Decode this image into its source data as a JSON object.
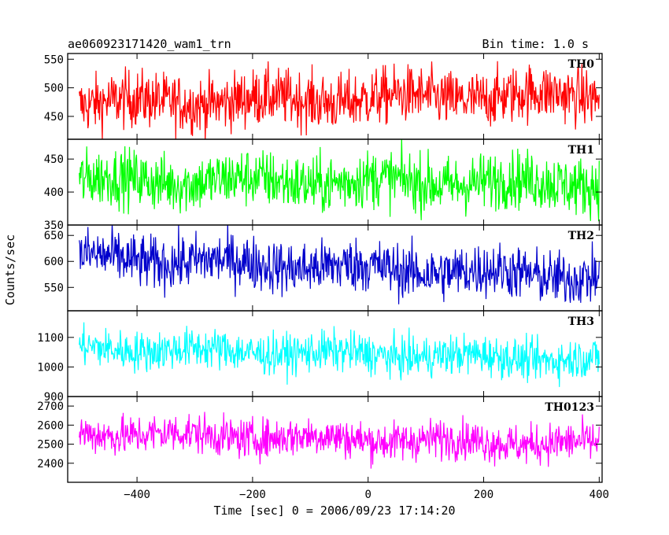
{
  "header": {
    "title": "ae060923171420_wam1_trn",
    "bin_time": "Bin time: 1.0 s"
  },
  "chart_data": {
    "type": "line",
    "xlabel": "Time [sec] 0 = 2006/09/23 17:14:20",
    "ylabel": "Counts/sec",
    "xlim": [
      -520,
      405
    ],
    "x_range": [
      -500,
      400
    ],
    "x_ticks": [
      -400,
      -200,
      0,
      200,
      400
    ],
    "x_tick_labels": [
      "−400",
      "−200",
      "0",
      "200",
      "400"
    ],
    "series": [
      {
        "name": "TH0",
        "color": "#ff0000",
        "ylim": [
          410,
          560
        ],
        "y_ticks": [
          450,
          500,
          550
        ],
        "y_tick_labels": [
          "450",
          "500",
          "550"
        ],
        "trend_start": 473,
        "trend_end": 488,
        "noise": 25
      },
      {
        "name": "TH1",
        "color": "#00ff00",
        "ylim": [
          350,
          480
        ],
        "y_ticks": [
          350,
          400,
          450
        ],
        "y_tick_labels": [
          "350",
          "400",
          "450"
        ],
        "trend_start": 418,
        "trend_end": 414,
        "noise": 22
      },
      {
        "name": "TH2",
        "color": "#0000cc",
        "ylim": [
          505,
          670
        ],
        "y_ticks": [
          550,
          600,
          650
        ],
        "y_tick_labels": [
          "550",
          "600",
          "650"
        ],
        "trend_start": 608,
        "trend_end": 570,
        "noise": 26
      },
      {
        "name": "TH3",
        "color": "#00ffff",
        "ylim": [
          900,
          1190
        ],
        "y_ticks": [
          900,
          1000,
          1100
        ],
        "y_tick_labels": [
          "900",
          "1000",
          "1100"
        ],
        "trend_start": 1065,
        "trend_end": 1025,
        "noise": 34
      },
      {
        "name": "TH0123",
        "color": "#ff00ff",
        "ylim": [
          2300,
          2750
        ],
        "y_ticks": [
          2400,
          2500,
          2600,
          2700
        ],
        "y_tick_labels": [
          "2400",
          "2500",
          "2600",
          "2700"
        ],
        "trend_start": 2560,
        "trend_end": 2500,
        "noise": 52
      }
    ]
  }
}
